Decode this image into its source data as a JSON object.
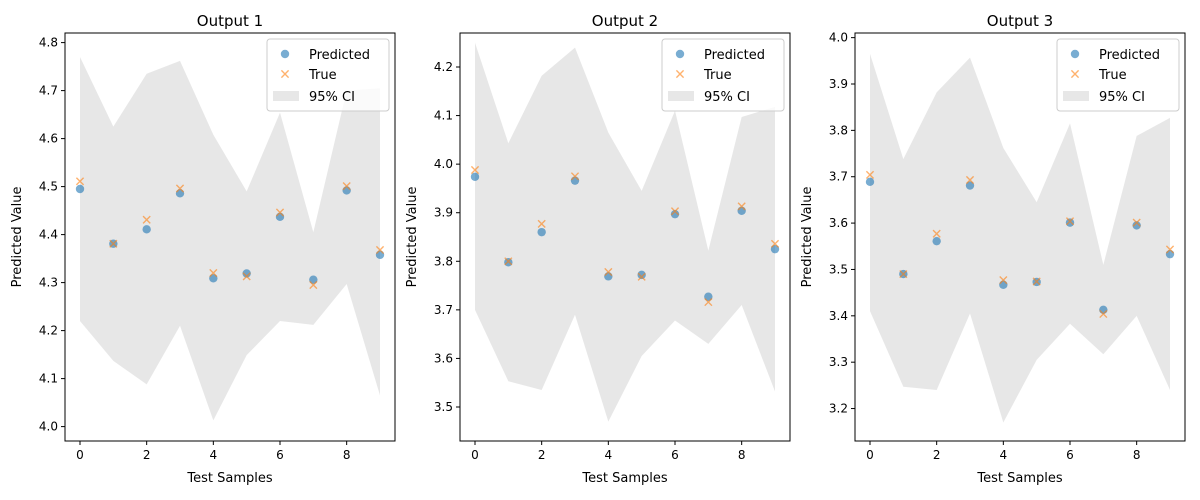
{
  "colors": {
    "predicted": "#1f77b4",
    "true": "#ff7f0e",
    "ci": "#d3d3d3",
    "axis": "#000000",
    "legend_border": "#cccccc"
  },
  "chart_data": [
    {
      "type": "scatter",
      "title": "Output 1",
      "xlabel": "Test Samples",
      "ylabel": "Predicted Value",
      "xlim": [
        -0.45,
        9.45
      ],
      "ylim": [
        3.97,
        4.82
      ],
      "xticks": [
        0,
        2,
        4,
        6,
        8
      ],
      "yticks": [
        4.0,
        4.1,
        4.2,
        4.3,
        4.4,
        4.5,
        4.6,
        4.7,
        4.8
      ],
      "ytick_labels": [
        "4.0",
        "4.1",
        "4.2",
        "4.3",
        "4.4",
        "4.5",
        "4.6",
        "4.7",
        "4.8"
      ],
      "legend": {
        "position": "top-right",
        "entries": [
          "Predicted",
          "True",
          "95% CI"
        ]
      },
      "x": [
        0,
        1,
        2,
        3,
        4,
        5,
        6,
        7,
        8,
        9
      ],
      "series": [
        {
          "name": "Predicted",
          "marker": "circle",
          "values": [
            4.495,
            4.381,
            4.411,
            4.486,
            4.309,
            4.319,
            4.437,
            4.306,
            4.492,
            4.358
          ]
        },
        {
          "name": "True",
          "marker": "x",
          "values": [
            4.511,
            4.381,
            4.431,
            4.496,
            4.32,
            4.313,
            4.446,
            4.295,
            4.501,
            4.368
          ]
        }
      ],
      "ci_lower": [
        4.22,
        4.137,
        4.088,
        4.21,
        4.013,
        4.149,
        4.22,
        4.212,
        4.297,
        4.065
      ],
      "ci_upper": [
        4.77,
        4.625,
        4.735,
        4.762,
        4.608,
        4.49,
        4.654,
        4.405,
        4.7,
        4.705
      ]
    },
    {
      "type": "scatter",
      "title": "Output 2",
      "xlabel": "Test Samples",
      "ylabel": "Predicted Value",
      "xlim": [
        -0.45,
        9.45
      ],
      "ylim": [
        3.43,
        4.27
      ],
      "xticks": [
        0,
        2,
        4,
        6,
        8
      ],
      "yticks": [
        3.5,
        3.6,
        3.7,
        3.8,
        3.9,
        4.0,
        4.1,
        4.2
      ],
      "ytick_labels": [
        "3.5",
        "3.6",
        "3.7",
        "3.8",
        "3.9",
        "4.0",
        "4.1",
        "4.2"
      ],
      "legend": {
        "position": "top-right",
        "entries": [
          "Predicted",
          "True",
          "95% CI"
        ]
      },
      "x": [
        0,
        1,
        2,
        3,
        4,
        5,
        6,
        7,
        8,
        9
      ],
      "series": [
        {
          "name": "Predicted",
          "marker": "circle",
          "values": [
            3.974,
            3.798,
            3.86,
            3.966,
            3.769,
            3.772,
            3.897,
            3.727,
            3.904,
            3.825
          ]
        },
        {
          "name": "True",
          "marker": "x",
          "values": [
            3.988,
            3.8,
            3.877,
            3.975,
            3.778,
            3.768,
            3.903,
            3.716,
            3.913,
            3.836
          ]
        }
      ],
      "ci_lower": [
        3.7,
        3.553,
        3.535,
        3.69,
        3.47,
        3.605,
        3.678,
        3.63,
        3.71,
        3.532
      ],
      "ci_upper": [
        4.25,
        4.043,
        4.182,
        4.24,
        4.065,
        3.945,
        4.11,
        3.822,
        4.097,
        4.118
      ]
    },
    {
      "type": "scatter",
      "title": "Output 3",
      "xlabel": "Test Samples",
      "ylabel": "Predicted Value",
      "xlim": [
        -0.45,
        9.45
      ],
      "ylim": [
        3.13,
        4.01
      ],
      "xticks": [
        0,
        2,
        4,
        6,
        8
      ],
      "yticks": [
        3.2,
        3.3,
        3.4,
        3.5,
        3.6,
        3.7,
        3.8,
        3.9,
        4.0
      ],
      "ytick_labels": [
        "3.2",
        "3.3",
        "3.4",
        "3.5",
        "3.6",
        "3.7",
        "3.8",
        "3.9",
        "4.0"
      ],
      "legend": {
        "position": "top-right",
        "entries": [
          "Predicted",
          "True",
          "95% CI"
        ]
      },
      "x": [
        0,
        1,
        2,
        3,
        4,
        5,
        6,
        7,
        8,
        9
      ],
      "series": [
        {
          "name": "Predicted",
          "marker": "circle",
          "values": [
            3.689,
            3.49,
            3.561,
            3.681,
            3.467,
            3.473,
            3.601,
            3.413,
            3.595,
            3.533
          ]
        },
        {
          "name": "True",
          "marker": "x",
          "values": [
            3.704,
            3.49,
            3.577,
            3.693,
            3.477,
            3.474,
            3.604,
            3.404,
            3.601,
            3.543
          ]
        }
      ],
      "ci_lower": [
        3.41,
        3.247,
        3.24,
        3.405,
        3.17,
        3.305,
        3.383,
        3.317,
        3.4,
        3.24
      ],
      "ci_upper": [
        3.965,
        3.738,
        3.882,
        3.957,
        3.762,
        3.645,
        3.815,
        3.51,
        3.788,
        3.827
      ]
    }
  ]
}
